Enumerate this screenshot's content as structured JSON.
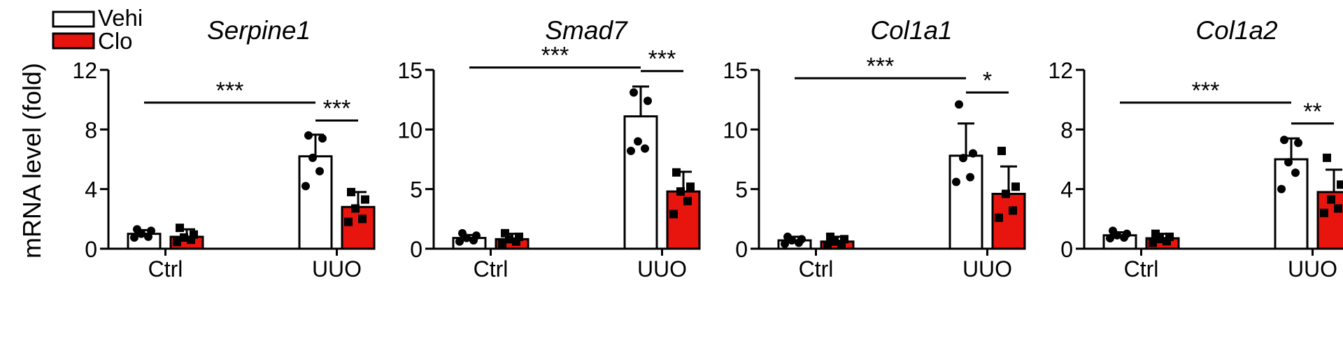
{
  "legend": [
    {
      "label": "Vehi",
      "color": "#ffffff"
    },
    {
      "label": "Clo",
      "color": "#e8150f"
    }
  ],
  "ylabel": "mRNA level (fold)",
  "chart_data": [
    {
      "type": "bar",
      "title": "Serpine1",
      "categories": [
        "Ctrl",
        "UUO"
      ],
      "yticks": [
        "0",
        "4",
        "8",
        "12"
      ],
      "ylim": [
        0,
        12
      ],
      "series": [
        {
          "name": "Vehi",
          "values": [
            1.0,
            6.2
          ],
          "errors": [
            0.25,
            1.45
          ],
          "points": [
            [
              1.3,
              1.2,
              1.0,
              0.8,
              0.75
            ],
            [
              7.6,
              7.4,
              6.1,
              5.2,
              4.2
            ]
          ]
        },
        {
          "name": "Clo",
          "values": [
            0.8,
            2.8
          ],
          "errors": [
            0.5,
            1.0
          ],
          "points": [
            [
              1.4,
              0.95,
              0.75,
              0.6,
              0.45
            ],
            [
              3.8,
              3.3,
              2.7,
              2.0,
              1.8
            ]
          ]
        }
      ],
      "significance": [
        {
          "from": 0,
          "to": 2,
          "label": "***",
          "y": 9.8
        },
        {
          "from": 2,
          "to": 3,
          "label": "***",
          "y": 8.6
        }
      ]
    },
    {
      "type": "bar",
      "title": "Smad7",
      "categories": [
        "Ctrl",
        "UUO"
      ],
      "yticks": [
        "0",
        "5",
        "10",
        "15"
      ],
      "ylim": [
        0,
        15
      ],
      "series": [
        {
          "name": "Vehi",
          "values": [
            0.9,
            11.1
          ],
          "errors": [
            0.25,
            2.5
          ],
          "points": [
            [
              1.3,
              1.1,
              0.9,
              0.7,
              0.6
            ],
            [
              13.1,
              12.4,
              9.0,
              8.4,
              8.2
            ]
          ]
        },
        {
          "name": "Clo",
          "values": [
            0.8,
            4.8
          ],
          "errors": [
            0.45,
            1.65
          ],
          "points": [
            [
              1.3,
              1.0,
              0.8,
              0.6,
              0.4
            ],
            [
              6.4,
              5.2,
              4.8,
              4.0,
              2.9
            ]
          ]
        }
      ],
      "significance": [
        {
          "from": 0,
          "to": 2,
          "label": "***",
          "y": 15.2
        },
        {
          "from": 2,
          "to": 3,
          "label": "***",
          "y": 14.9
        }
      ]
    },
    {
      "type": "bar",
      "title": "Col1a1",
      "categories": [
        "Ctrl",
        "UUO"
      ],
      "yticks": [
        "0",
        "5",
        "10",
        "15"
      ],
      "ylim": [
        0,
        15
      ],
      "series": [
        {
          "name": "Vehi",
          "values": [
            0.7,
            7.8
          ],
          "errors": [
            0.3,
            2.7
          ],
          "points": [
            [
              1.0,
              0.8,
              0.7,
              0.5,
              0.4
            ],
            [
              12.1,
              8.0,
              7.6,
              6.0,
              5.6
            ]
          ]
        },
        {
          "name": "Clo",
          "values": [
            0.6,
            4.6
          ],
          "errors": [
            0.4,
            2.3
          ],
          "points": [
            [
              1.0,
              0.8,
              0.6,
              0.4,
              0.3
            ],
            [
              8.2,
              5.2,
              4.6,
              3.2,
              2.6
            ]
          ]
        }
      ],
      "significance": [
        {
          "from": 0,
          "to": 2,
          "label": "***",
          "y": 14.3
        },
        {
          "from": 2,
          "to": 3,
          "label": "*",
          "y": 13.1
        }
      ]
    },
    {
      "type": "bar",
      "title": "Col1a2",
      "categories": [
        "Ctrl",
        "UUO"
      ],
      "yticks": [
        "0",
        "4",
        "8",
        "12"
      ],
      "ylim": [
        0,
        12
      ],
      "series": [
        {
          "name": "Vehi",
          "values": [
            0.9,
            6.0
          ],
          "errors": [
            0.2,
            1.4
          ],
          "points": [
            [
              1.2,
              1.0,
              0.9,
              0.75,
              0.7
            ],
            [
              7.3,
              7.1,
              5.8,
              5.1,
              4.0
            ]
          ]
        },
        {
          "name": "Clo",
          "values": [
            0.7,
            3.8
          ],
          "errors": [
            0.3,
            1.5
          ],
          "points": [
            [
              1.0,
              0.8,
              0.65,
              0.5,
              0.4
            ],
            [
              6.1,
              4.3,
              3.3,
              2.7,
              2.4
            ]
          ]
        }
      ],
      "significance": [
        {
          "from": 0,
          "to": 2,
          "label": "***",
          "y": 9.8
        },
        {
          "from": 2,
          "to": 3,
          "label": "**",
          "y": 8.4
        }
      ]
    }
  ]
}
